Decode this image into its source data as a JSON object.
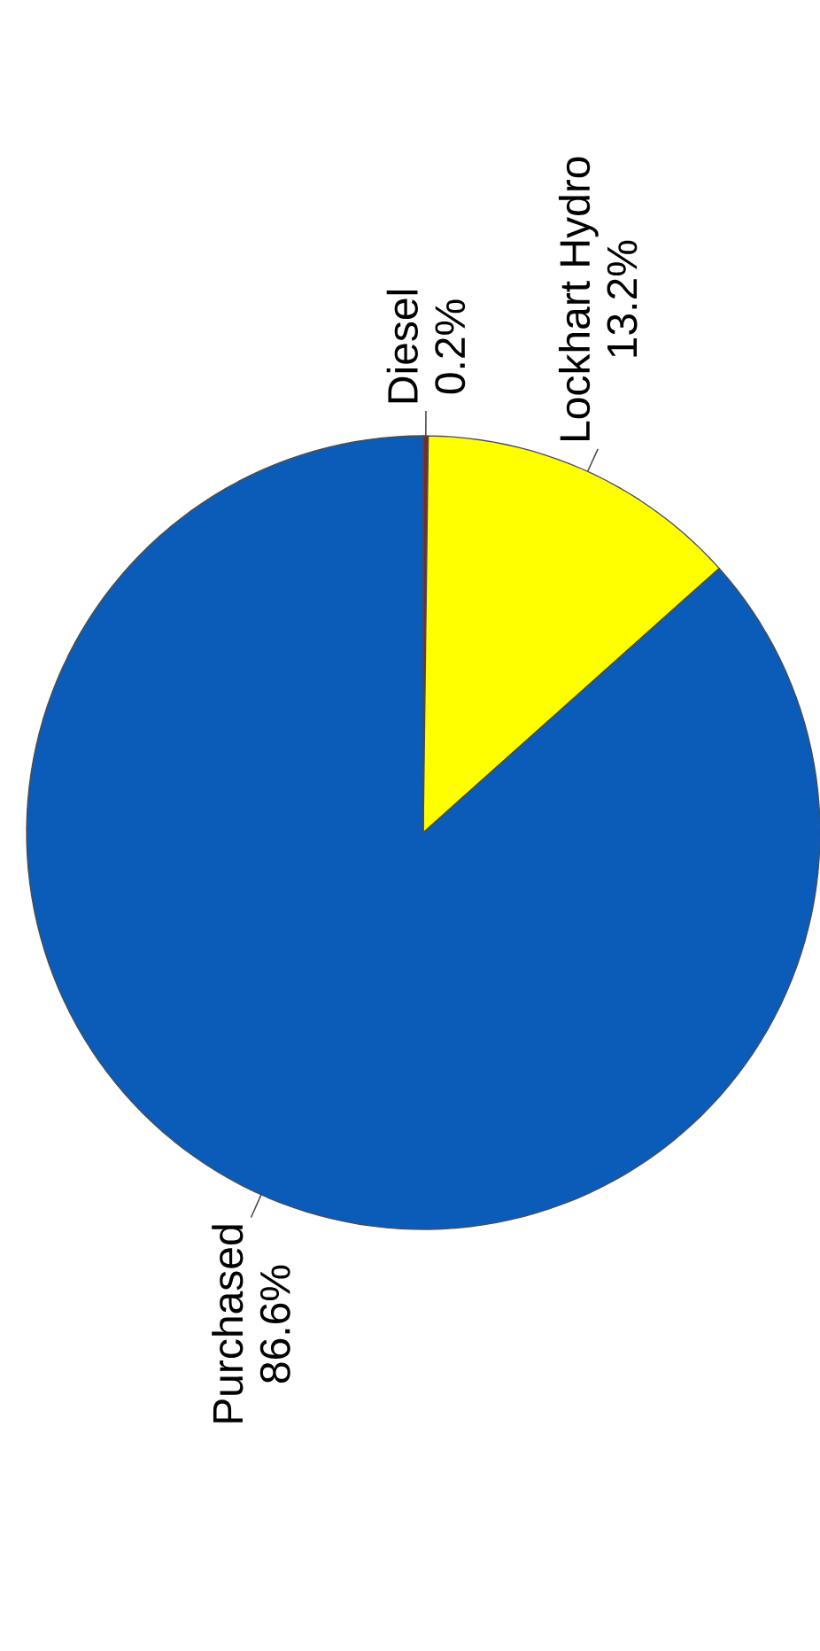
{
  "chart_data": {
    "type": "pie",
    "categories": [
      "Diesel",
      "Lockhart Hydro",
      "Purchased"
    ],
    "values": [
      0.2,
      13.2,
      86.6
    ],
    "value_labels": [
      "0.2%",
      "13.2%",
      "86.6%"
    ],
    "colors": [
      "#7a2a2a",
      "#ffff00",
      "#0a5cb8"
    ]
  }
}
